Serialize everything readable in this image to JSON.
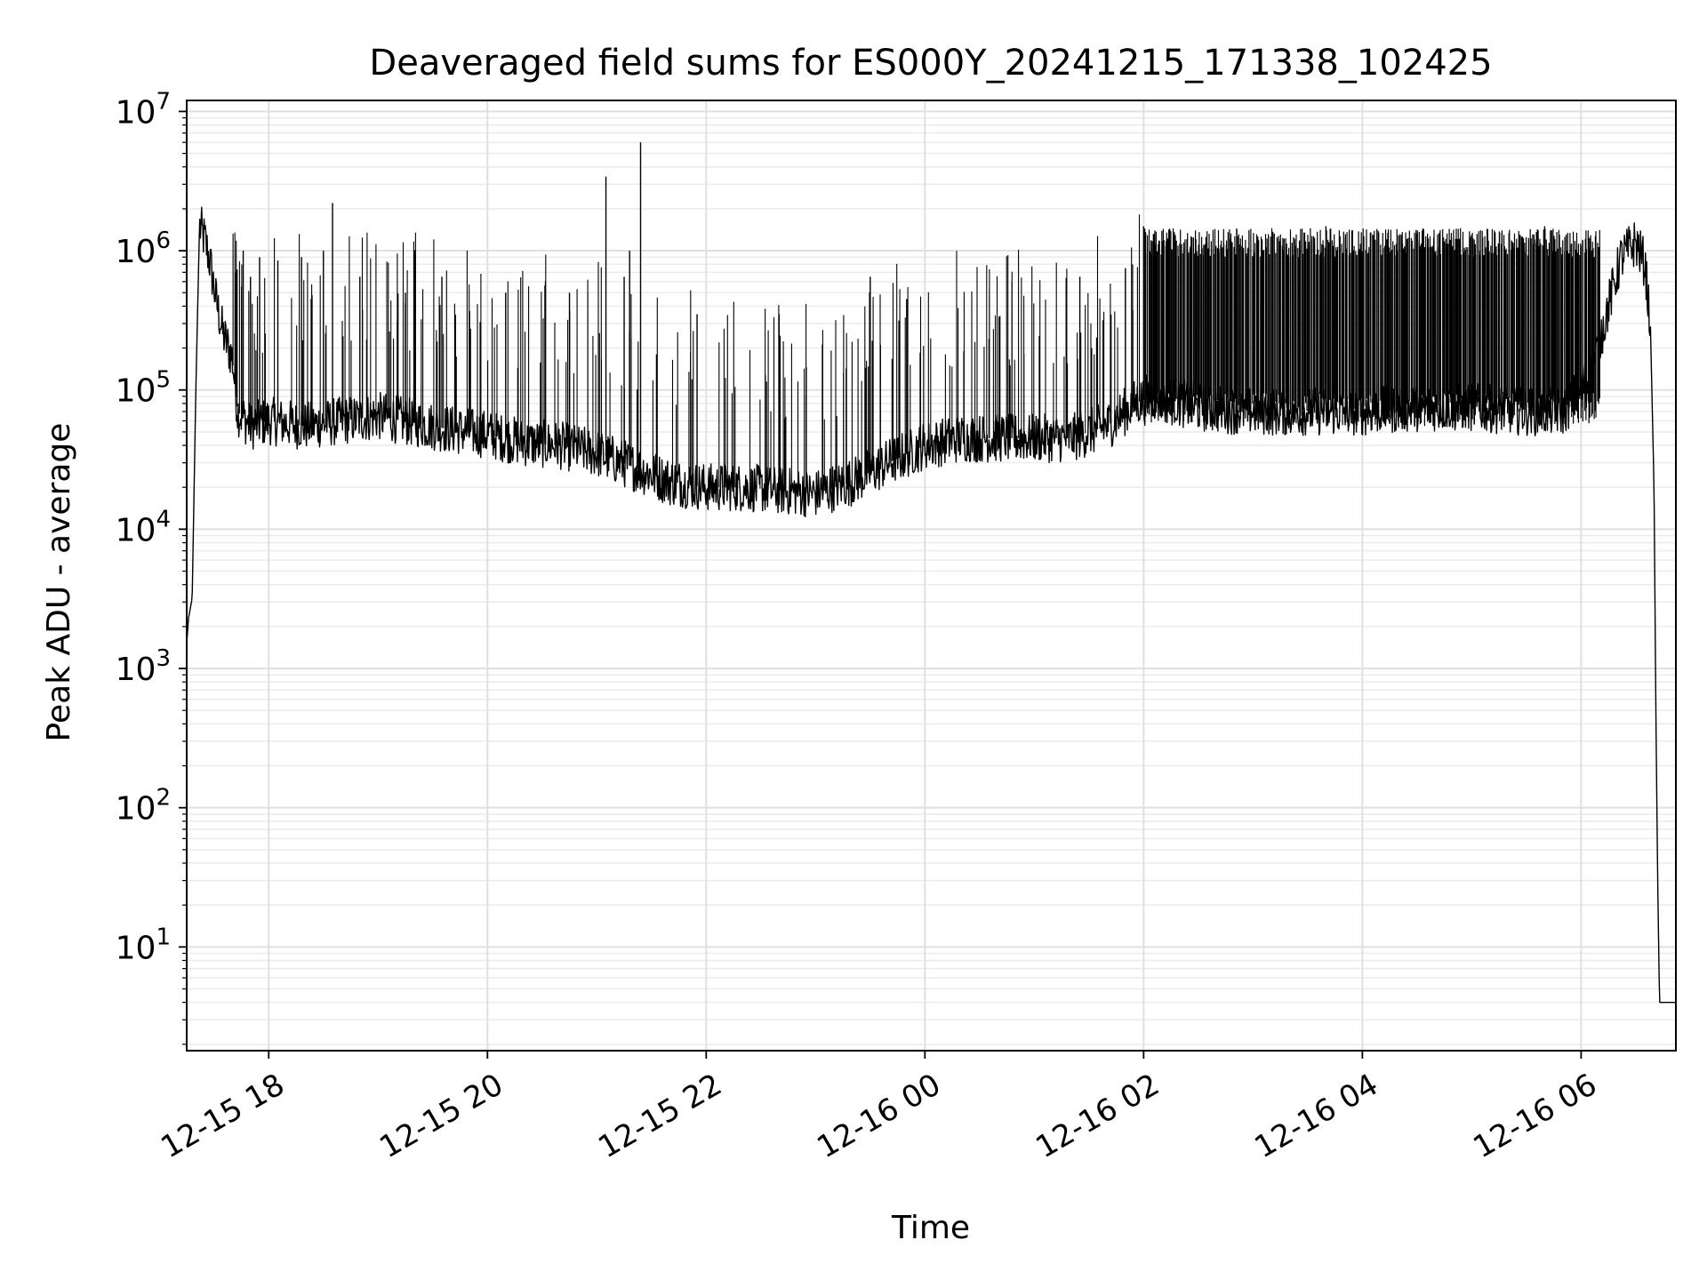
{
  "chart_data": {
    "type": "line",
    "title": "Deaveraged field sums for ES000Y_20241215_171338_102425",
    "xlabel": "Time",
    "ylabel": "Peak ADU - average",
    "yscale": "log",
    "ylim": [
      1.8,
      12000000
    ],
    "xlim": [
      "2024-12-15 17:15",
      "2024-12-16 06:52"
    ],
    "grid": true,
    "legend": "none",
    "x_ticks": [
      {
        "t": "2024-12-15 18:00",
        "label": "12-15 18"
      },
      {
        "t": "2024-12-15 20:00",
        "label": "12-15 20"
      },
      {
        "t": "2024-12-15 22:00",
        "label": "12-15 22"
      },
      {
        "t": "2024-12-16 00:00",
        "label": "12-16 00"
      },
      {
        "t": "2024-12-16 02:00",
        "label": "12-16 02"
      },
      {
        "t": "2024-12-16 04:00",
        "label": "12-16 04"
      },
      {
        "t": "2024-12-16 06:00",
        "label": "12-16 06"
      }
    ],
    "y_ticks": [
      {
        "v": 10,
        "exp": "1"
      },
      {
        "v": 100,
        "exp": "2"
      },
      {
        "v": 1000,
        "exp": "3"
      },
      {
        "v": 10000,
        "exp": "4"
      },
      {
        "v": 100000,
        "exp": "5"
      },
      {
        "v": 1000000,
        "exp": "6"
      },
      {
        "v": 10000000,
        "exp": "7"
      }
    ],
    "series": [
      {
        "color": "#000000",
        "points": [
          [
            "2024-12-15 17:15",
            1500
          ],
          [
            "2024-12-15 17:16",
            2300
          ],
          [
            "2024-12-15 17:18",
            3200
          ],
          [
            "2024-12-15 17:20",
            100000
          ],
          [
            "2024-12-15 17:22",
            1500000
          ],
          [
            "2024-12-15 17:25",
            1200000
          ],
          [
            "2024-12-15 17:28",
            800000
          ],
          [
            "2024-12-15 17:31",
            450000
          ],
          [
            "2024-12-15 17:35",
            250000
          ],
          [
            "2024-12-15 17:40",
            170000
          ],
          [
            "2024-12-15 17:43",
            70000
          ],
          [
            "2024-12-15 17:50",
            55000
          ],
          [
            "2024-12-15 18:00",
            60000
          ],
          [
            "2024-12-15 18:20",
            55000
          ],
          [
            "2024-12-15 18:40",
            60000
          ],
          [
            "2024-12-15 19:00",
            65000
          ],
          [
            "2024-12-15 19:20",
            58000
          ],
          [
            "2024-12-15 19:40",
            52000
          ],
          [
            "2024-12-15 20:00",
            48000
          ],
          [
            "2024-12-15 20:20",
            42000
          ],
          [
            "2024-12-15 20:40",
            40000
          ],
          [
            "2024-12-15 21:00",
            35000
          ],
          [
            "2024-12-15 21:20",
            28000
          ],
          [
            "2024-12-15 21:40",
            22000
          ],
          [
            "2024-12-15 22:00",
            20000
          ],
          [
            "2024-12-15 22:20",
            20000
          ],
          [
            "2024-12-15 22:40",
            19000
          ],
          [
            "2024-12-15 23:00",
            18000
          ],
          [
            "2024-12-15 23:20",
            22000
          ],
          [
            "2024-12-15 23:40",
            30000
          ],
          [
            "2024-12-16 00:00",
            40000
          ],
          [
            "2024-12-16 00:20",
            45000
          ],
          [
            "2024-12-16 00:40",
            45000
          ],
          [
            "2024-12-16 01:00",
            45000
          ],
          [
            "2024-12-16 01:20",
            45000
          ],
          [
            "2024-12-16 01:40",
            55000
          ],
          [
            "2024-12-16 01:55",
            80000
          ],
          [
            "2024-12-16 02:05",
            90000
          ],
          [
            "2024-12-16 02:30",
            75000
          ],
          [
            "2024-12-16 03:00",
            70000
          ],
          [
            "2024-12-16 03:30",
            70000
          ],
          [
            "2024-12-16 04:00",
            70000
          ],
          [
            "2024-12-16 04:30",
            75000
          ],
          [
            "2024-12-16 05:00",
            75000
          ],
          [
            "2024-12-16 05:30",
            70000
          ],
          [
            "2024-12-16 05:50",
            70000
          ],
          [
            "2024-12-16 06:05",
            120000
          ],
          [
            "2024-12-16 06:15",
            400000
          ],
          [
            "2024-12-16 06:22",
            900000
          ],
          [
            "2024-12-16 06:30",
            1150000
          ],
          [
            "2024-12-16 06:35",
            800000
          ],
          [
            "2024-12-16 06:38",
            300000
          ],
          [
            "2024-12-16 06:40",
            20000
          ],
          [
            "2024-12-16 06:41",
            500
          ],
          [
            "2024-12-16 06:42",
            30
          ],
          [
            "2024-12-16 06:43",
            4
          ],
          [
            "2024-12-16 06:52",
            4
          ]
        ],
        "spikes": [
          [
            "2024-12-15 17:42",
            700000
          ],
          [
            "2024-12-15 17:46",
            1000000
          ],
          [
            "2024-12-15 17:50",
            650000
          ],
          [
            "2024-12-15 17:55",
            900000
          ],
          [
            "2024-12-15 18:05",
            850000
          ],
          [
            "2024-12-15 18:18",
            900000
          ],
          [
            "2024-12-15 18:30",
            1000000
          ],
          [
            "2024-12-15 18:35",
            2200000
          ],
          [
            "2024-12-15 18:50",
            650000
          ],
          [
            "2024-12-15 19:15",
            500000
          ],
          [
            "2024-12-15 19:35",
            650000
          ],
          [
            "2024-12-15 20:10",
            500000
          ],
          [
            "2024-12-15 20:45",
            500000
          ],
          [
            "2024-12-15 21:05",
            3400000
          ],
          [
            "2024-12-15 21:15",
            650000
          ],
          [
            "2024-12-15 21:18",
            1000000
          ],
          [
            "2024-12-15 21:24",
            6000000
          ],
          [
            "2024-12-15 21:55",
            350000
          ],
          [
            "2024-12-15 22:40",
            350000
          ],
          [
            "2024-12-15 23:30",
            650000
          ],
          [
            "2024-12-15 23:50",
            450000
          ],
          [
            "2024-12-16 01:25",
            650000
          ],
          [
            "2024-12-16 01:50",
            750000
          ],
          [
            "2024-12-16 02:00",
            1500000
          ],
          [
            "2024-12-16 03:40",
            1500000
          ],
          [
            "2024-12-16 05:40",
            1500000
          ],
          [
            "2024-12-16 06:25",
            1200000
          ]
        ]
      }
    ]
  }
}
